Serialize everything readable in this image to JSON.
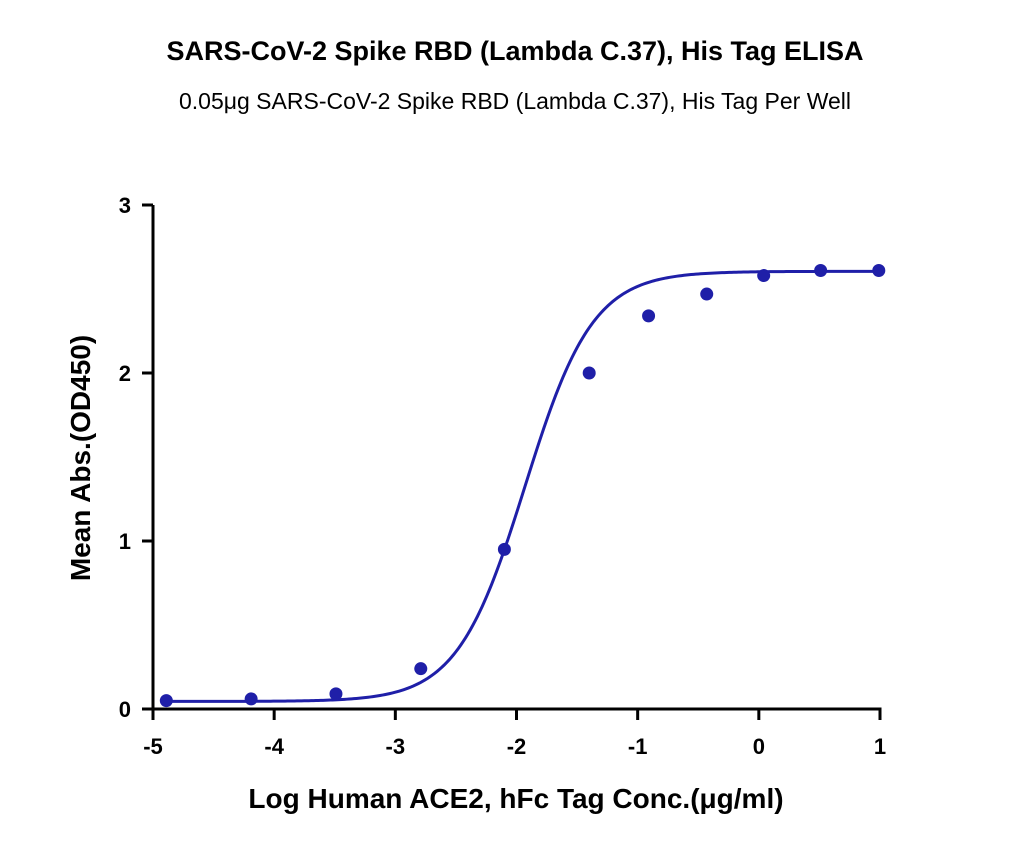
{
  "chart_data": {
    "type": "scatter",
    "title": "SARS-CoV-2 Spike RBD (Lambda C.37), His Tag ELISA",
    "subtitle": "0.05μg SARS-CoV-2 Spike RBD (Lambda C.37), His Tag Per Well",
    "xlabel": "Log Human ACE2, hFc Tag Conc.(μg/ml)",
    "ylabel": "Mean Abs.(OD450)",
    "xlim": [
      -5,
      1
    ],
    "ylim": [
      0,
      3
    ],
    "xticks": [
      "-5",
      "-4",
      "-3",
      "-2",
      "-1",
      "0",
      "1"
    ],
    "yticks": [
      "0",
      "1",
      "2",
      "3"
    ],
    "grid": false,
    "series": [
      {
        "x": [
          -4.89,
          -4.19,
          -3.49,
          -2.79,
          -2.1,
          -1.4,
          -0.91,
          -0.43,
          0.04,
          0.51,
          0.99
        ],
        "y": [
          0.05,
          0.06,
          0.09,
          0.24,
          0.95,
          2.0,
          2.34,
          2.47,
          2.58,
          2.61,
          2.61
        ],
        "fit": {
          "model": "4PL",
          "bottom": 0.045,
          "top": 2.605,
          "logEC50": -1.93,
          "hill": 1.55
        }
      }
    ],
    "color": "#1f1fa8"
  }
}
